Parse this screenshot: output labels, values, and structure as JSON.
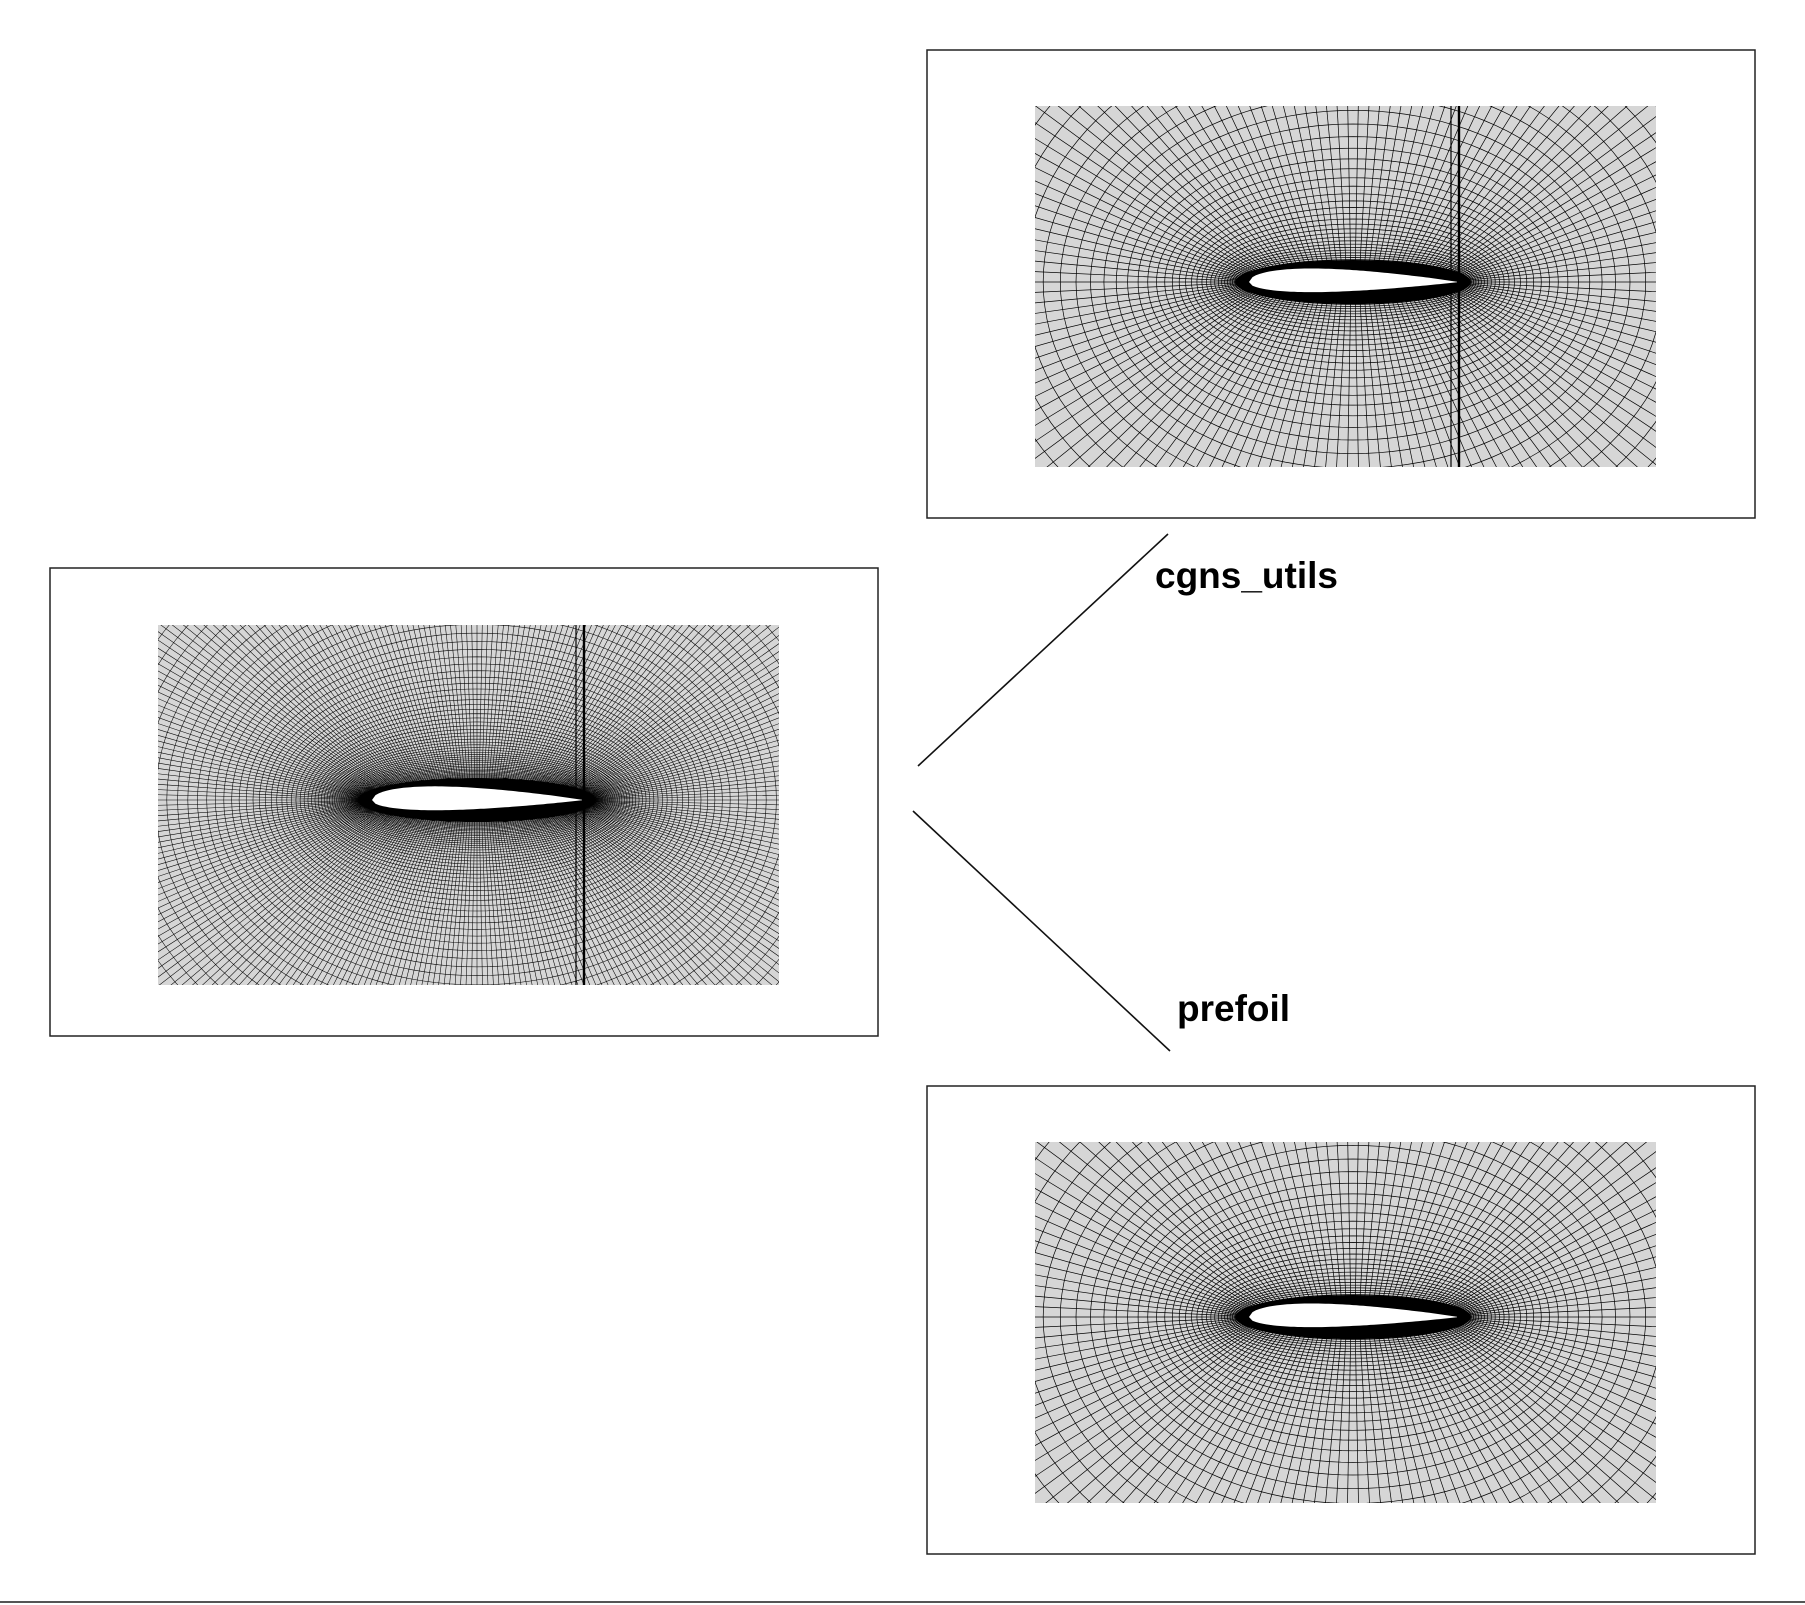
{
  "labels": {
    "upper": "cgns_utils",
    "lower": "prefoil"
  },
  "panels": [
    {
      "name": "source-mesh",
      "meshing": "dense",
      "wake_line": true
    },
    {
      "name": "cgns-utils-mesh",
      "meshing": "coarse",
      "wake_line": true
    },
    {
      "name": "prefoil-mesh",
      "meshing": "coarse",
      "wake_line": false
    }
  ],
  "colors": {
    "mesh_background": "#d6d6d6",
    "grid_lines": "#000000",
    "airfoil": "#ffffff",
    "frame": "#222222"
  }
}
